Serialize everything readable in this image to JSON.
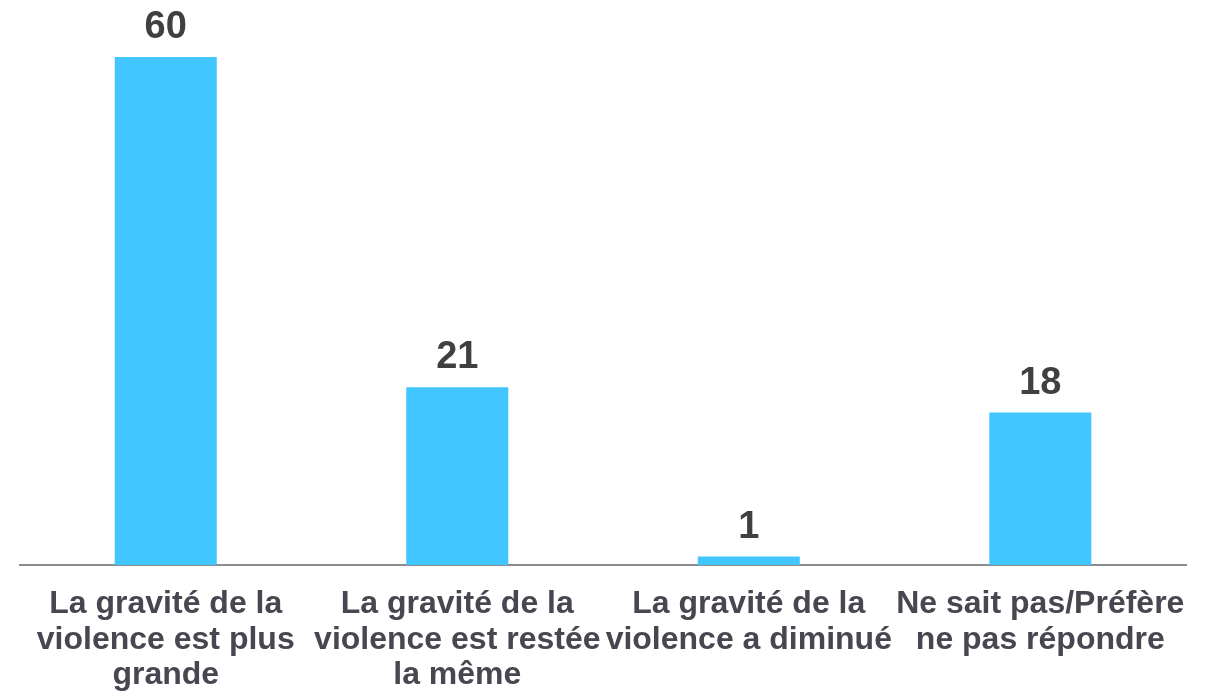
{
  "chart_data": {
    "type": "bar",
    "categories": [
      "La gravité de la violence est plus grande",
      "La gravité de la violence est restée la même",
      "La gravité de la violence a diminué",
      "Ne sait pas/Préfère ne pas répondre"
    ],
    "values": [
      60,
      21,
      1,
      18
    ],
    "color": "#42c6ff",
    "ylim": [
      0,
      60
    ],
    "tick_labels": "x",
    "data_labels": true,
    "grid": false,
    "legend": false
  }
}
